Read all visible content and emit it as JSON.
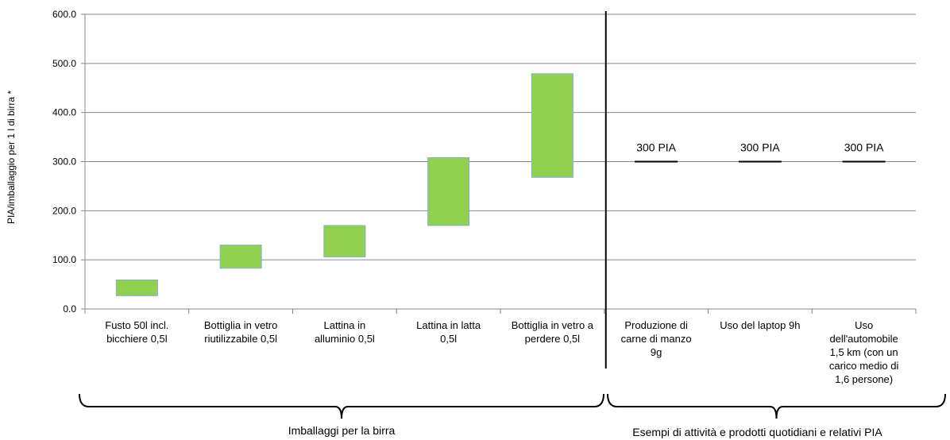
{
  "chart_data": {
    "type": "floating-bar",
    "ylabel": "PIA/imballaggio per 1 l di birra *",
    "ylim": [
      0,
      600
    ],
    "yticks": [
      "0.0",
      "100.0",
      "200.0",
      "300.0",
      "400.0",
      "500.0",
      "600.0"
    ],
    "ytick_values": [
      0,
      100,
      200,
      300,
      400,
      500,
      600
    ],
    "grid": true,
    "colors": {
      "bar": "#92D050",
      "bar_edge": "#7FB2C8",
      "marker": "#000000"
    },
    "categories": [
      [
        "Fusto 50l incl.",
        "bicchiere 0,5l"
      ],
      [
        "Bottiglia in vetro",
        "riutilizzabile 0,5l"
      ],
      [
        "Lattina in",
        "alluminio 0,5l"
      ],
      [
        "Lattina in latta",
        "0,5l"
      ],
      [
        "Bottiglia in vetro a",
        "perdere 0,5l"
      ],
      [
        "Produzione di",
        "carne di manzo",
        "9g"
      ],
      [
        "Uso del laptop 9h"
      ],
      [
        "Uso",
        "dell'automobile",
        "1,5 km (con un",
        "carico medio di",
        "1,6 persone)"
      ]
    ],
    "ranges": [
      {
        "low": 27,
        "high": 59
      },
      {
        "low": 83,
        "high": 130
      },
      {
        "low": 106,
        "high": 170
      },
      {
        "low": 170,
        "high": 308
      },
      {
        "low": 268,
        "high": 479
      }
    ],
    "reference_markers": [
      {
        "value": 300,
        "label": "300 PIA"
      },
      {
        "value": 300,
        "label": "300 PIA"
      },
      {
        "value": 300,
        "label": "300 PIA"
      }
    ],
    "groups": [
      {
        "label": "Imballaggi per la birra"
      },
      {
        "label": "Esempi di attività e prodotti quotidiani e relativi PIA"
      }
    ]
  }
}
